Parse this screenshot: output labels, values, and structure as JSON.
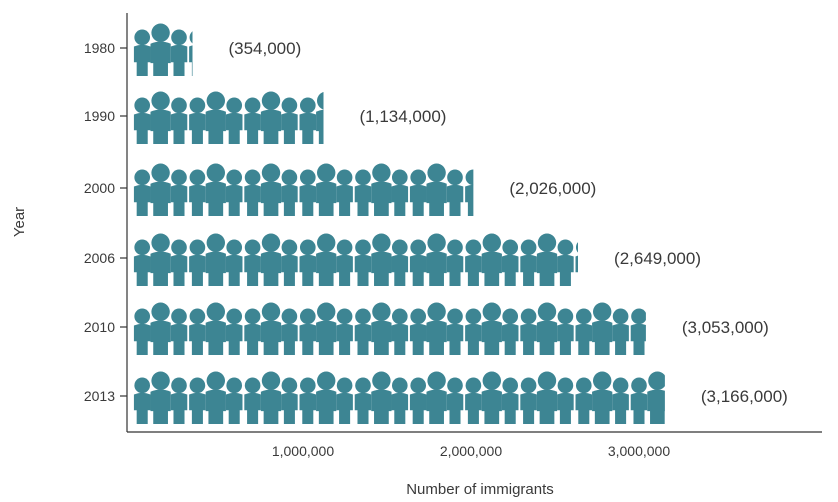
{
  "chart_data": {
    "type": "bar",
    "style": "pictograph",
    "icon": "family-icon",
    "color": "#3d8593",
    "xlabel": "Number of immigrants",
    "ylabel": "Year",
    "categories": [
      "1980",
      "1990",
      "2000",
      "2006",
      "2010",
      "2013"
    ],
    "values": [
      354000,
      1134000,
      2026000,
      2649000,
      3053000,
      3166000
    ],
    "value_labels": [
      "(354,000)",
      "(1,134,000)",
      "(2,026,000)",
      "(2,649,000)",
      "(3,053,000)",
      "(3,166,000)"
    ],
    "xticks": [
      1000000,
      2000000,
      3000000
    ],
    "xtick_labels": [
      "1,000,000",
      "2,000,000",
      "3,000,000"
    ],
    "xlim": [
      0,
      4000000
    ],
    "grid": false,
    "legend": false
  }
}
